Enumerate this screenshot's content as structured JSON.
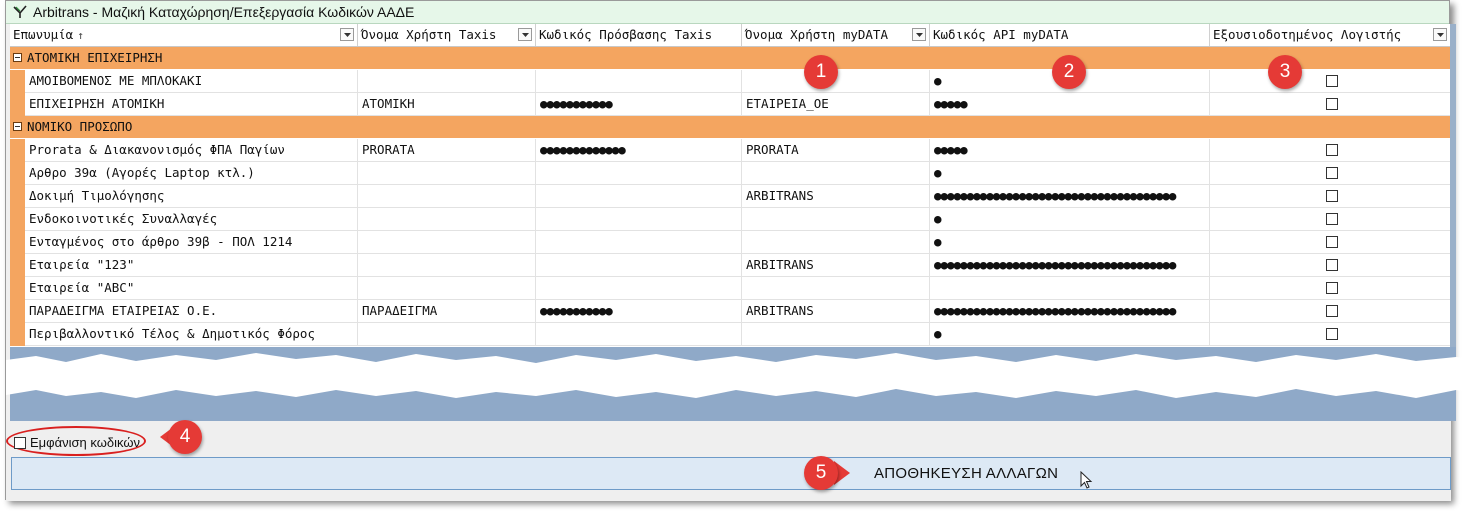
{
  "window": {
    "title": "Arbitrans - Μαζική Καταχώρηση/Επεξεργασία Κωδικών ΑΑΔΕ"
  },
  "columns": [
    {
      "label": "Επωνυμία",
      "sort": "↑",
      "filter": true
    },
    {
      "label": "Όνομα Χρήστη Taxis",
      "filter": true
    },
    {
      "label": "Κωδικός Πρόσβασης Taxis",
      "filter": false
    },
    {
      "label": "Όνομα Χρήστη myDATA",
      "filter": true
    },
    {
      "label": "Κωδικός API myDATA",
      "filter": false
    },
    {
      "label": "Εξουσιοδοτημένος Λογιστής",
      "filter": true
    }
  ],
  "groups": [
    {
      "label": "ΑΤΟΜΙΚΗ ΕΠΙΧΕΙΡΗΣΗ",
      "rows": [
        {
          "name": "ΑΜΟΙΒΟΜΕΝΟΣ ΜΕ ΜΠΛΟΚΑΚΙ",
          "taxis_user": "",
          "taxis_pass": "",
          "mydata_user": "",
          "mydata_api": "●"
        },
        {
          "name": "ΕΠΙΧΕΙΡΗΣΗ ΑΤΟΜΙΚΗ",
          "taxis_user": "ΑΤΟΜΙΚΗ",
          "taxis_pass": "●●●●●●●●●●●",
          "mydata_user": "ΕΤΑΙΡΕΙΑ_ΟΕ",
          "mydata_api": "●●●●●"
        }
      ]
    },
    {
      "label": "ΝΟΜΙΚΟ ΠΡΟΣΩΠΟ",
      "rows": [
        {
          "name": "Prorata & Διακανονισμός ΦΠΑ Παγίων",
          "taxis_user": "PRORATA",
          "taxis_pass": "●●●●●●●●●●●●●",
          "mydata_user": "PRORATA",
          "mydata_api": "●●●●●"
        },
        {
          "name": "Αρθρο 39α (Αγορές Laptop κτλ.)",
          "taxis_user": "",
          "taxis_pass": "",
          "mydata_user": "",
          "mydata_api": "●"
        },
        {
          "name": "Δοκιμή Τιμολόγησης",
          "taxis_user": "",
          "taxis_pass": "",
          "mydata_user": " ARBITRANS",
          "mydata_api": "●●●●●●●●●●●●●●●●●●●●●●●●●●●●●●●●●●●●●"
        },
        {
          "name": "Ενδοκοινοτικές Συναλλαγές",
          "taxis_user": "",
          "taxis_pass": "",
          "mydata_user": "",
          "mydata_api": "●"
        },
        {
          "name": "Ενταγμένος στο άρθρο 39β - ΠΟΛ 1214",
          "taxis_user": "",
          "taxis_pass": "",
          "mydata_user": "",
          "mydata_api": "●"
        },
        {
          "name": "Εταιρεία \"123\"",
          "taxis_user": "",
          "taxis_pass": "",
          "mydata_user": "ARBITRANS",
          "mydata_api": "●●●●●●●●●●●●●●●●●●●●●●●●●●●●●●●●●●●●●"
        },
        {
          "name": "Εταιρεία \"ABC\"",
          "taxis_user": "",
          "taxis_pass": "",
          "mydata_user": "",
          "mydata_api": ""
        },
        {
          "name": "ΠΑΡΑΔΕΙΓΜΑ ΕΤΑΙΡΕΙΑΣ Ο.Ε.",
          "taxis_user": "ΠΑΡΑΔΕΙΓΜΑ",
          "taxis_pass": "●●●●●●●●●●●",
          "mydata_user": "ARBITRANS",
          "mydata_api": "●●●●●●●●●●●●●●●●●●●●●●●●●●●●●●●●●●●●●"
        },
        {
          "name": "Περιβαλλοντικό Τέλος & Δημοτικός Φόρος",
          "taxis_user": "",
          "taxis_pass": "",
          "mydata_user": "",
          "mydata_api": "●"
        }
      ]
    }
  ],
  "show_codes": {
    "label": "Εμφάνιση κωδικών",
    "checked": false
  },
  "save_button": {
    "label": "ΑΠΟΘΗΚΕΥΣΗ ΑΛΛΑΓΩΝ"
  },
  "callouts": [
    "1",
    "2",
    "3",
    "4",
    "5"
  ],
  "colors": {
    "group_band": "#f4a560",
    "callout": "#e53a36",
    "title_bg": "#e6f7e9",
    "torn_area": "#8fa9c8"
  }
}
